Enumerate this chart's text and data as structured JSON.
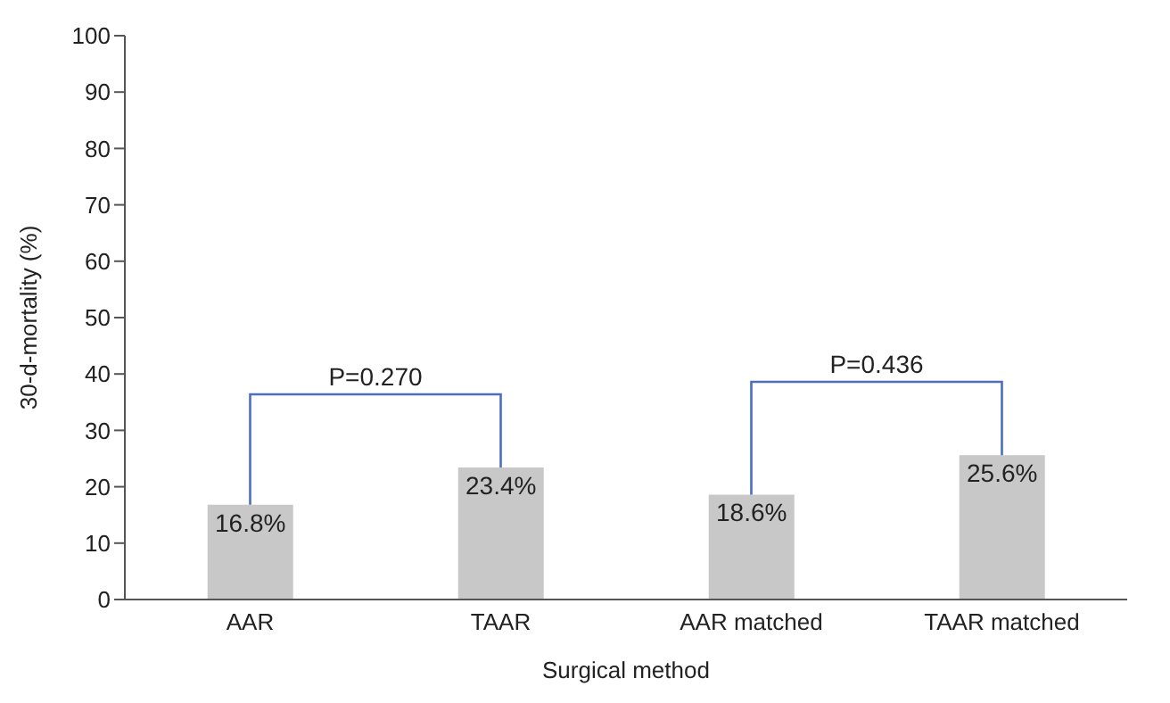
{
  "chart_data": {
    "type": "bar",
    "xlabel": "Surgical method",
    "ylabel": "30-d-mortality (%)",
    "categories": [
      "AAR",
      "TAAR",
      "AAR matched",
      "TAAR matched"
    ],
    "values": [
      16.8,
      23.4,
      18.6,
      25.6
    ],
    "value_labels": [
      "16.8%",
      "23.4%",
      "18.6%",
      "25.6%"
    ],
    "color": "#c8c8c8",
    "ylim": [
      0,
      100
    ],
    "yticks": [
      0,
      10,
      20,
      30,
      40,
      50,
      60,
      70,
      80,
      90,
      100
    ],
    "grid": false,
    "annotations": [
      "P=0.270",
      "P=0.436"
    ]
  }
}
